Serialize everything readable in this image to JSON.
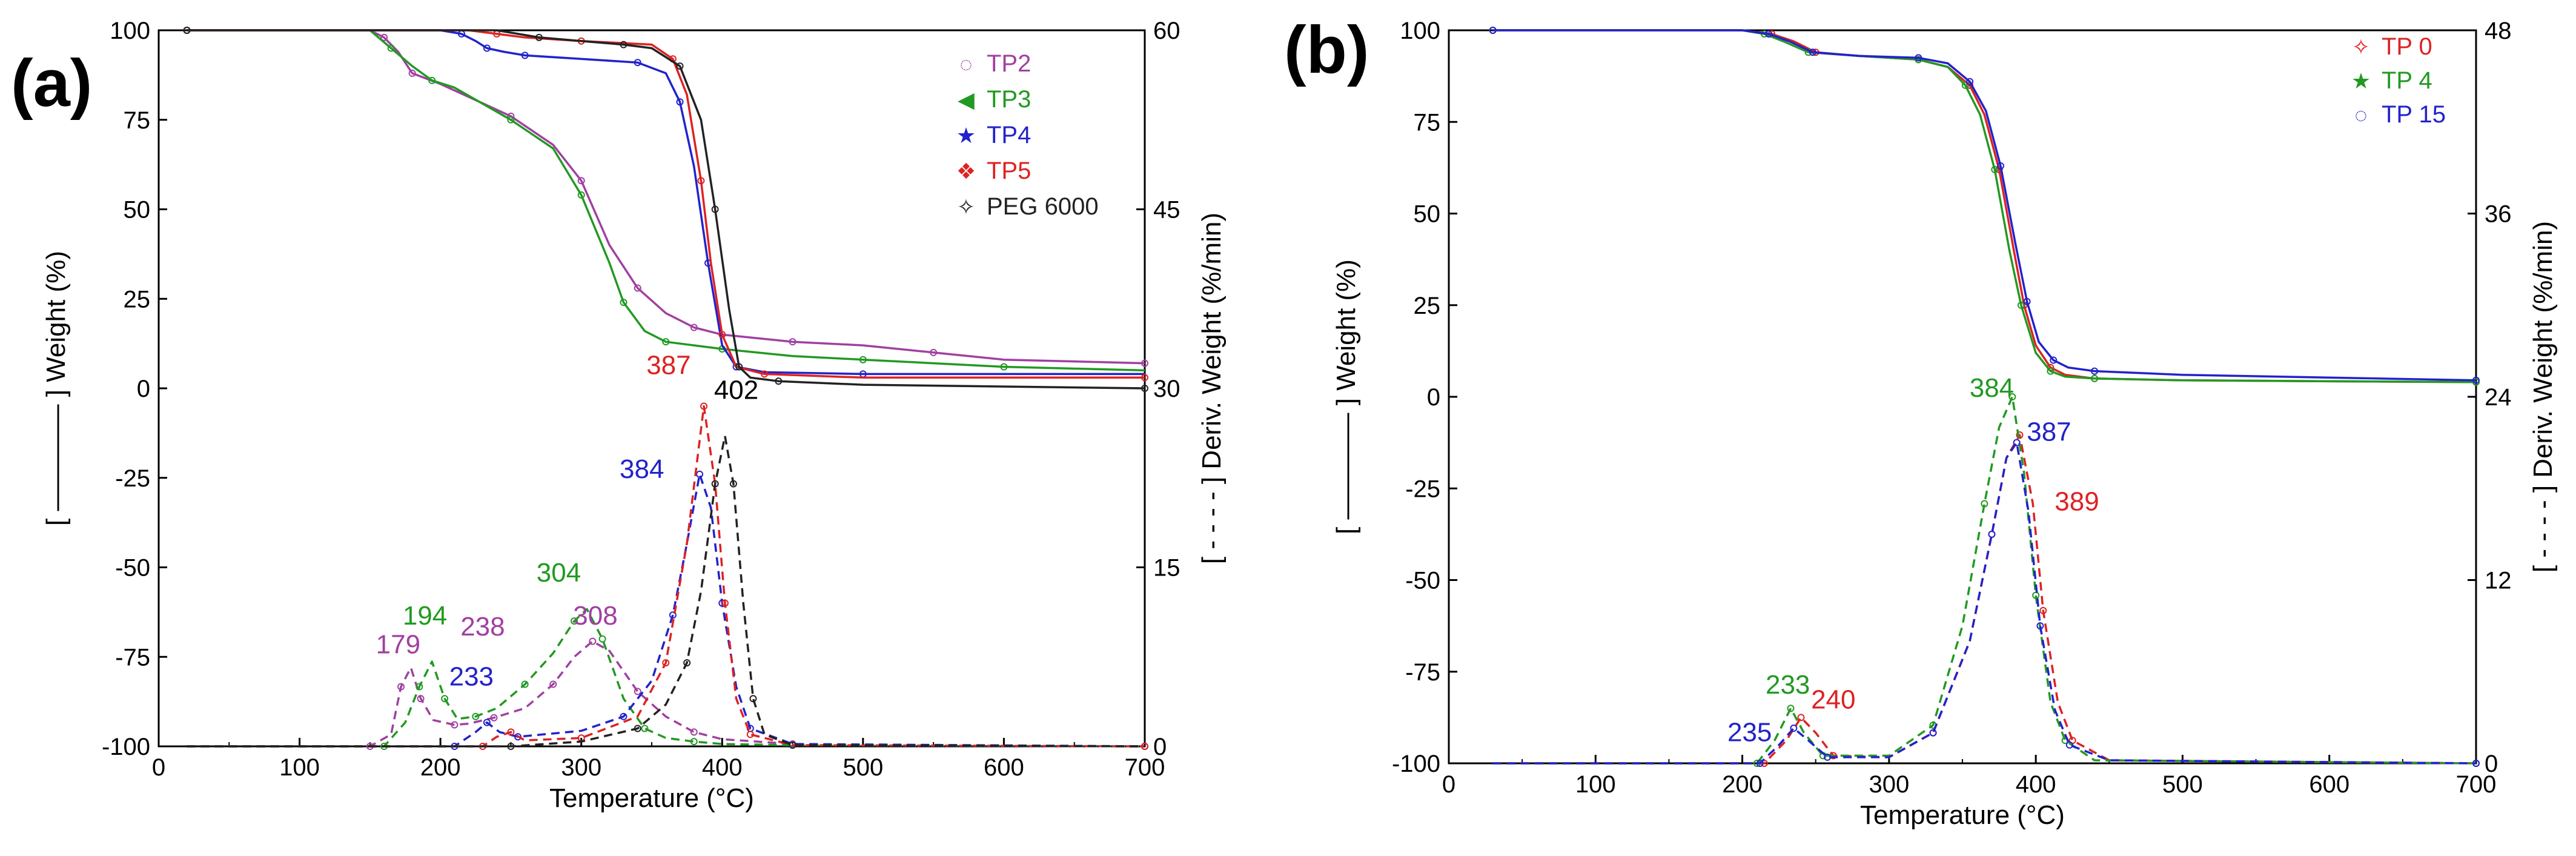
{
  "chart_data": [
    {
      "type": "line",
      "panel_label": "(a)",
      "xlabel": "Temperature (°C)",
      "ylabel_left": "[ ———— ] Weight (%)",
      "ylabel_right": "[ - - - - ] Deriv. Weight (%/min)",
      "xlim": [
        0,
        700
      ],
      "ylim_left": [
        -100,
        100
      ],
      "ylim_right": [
        0,
        60
      ],
      "xticks": [
        0,
        100,
        200,
        300,
        400,
        500,
        600,
        700
      ],
      "yticks_left": [
        -100,
        -75,
        -50,
        -25,
        0,
        25,
        50,
        75,
        100
      ],
      "yticks_right": [
        0,
        15,
        30,
        45,
        60
      ],
      "legend_position": "top-right",
      "series": [
        {
          "name": "TP2",
          "color": "#A040A0",
          "marker": "◌",
          "weight": {
            "x": [
              20,
              150,
              160,
              170,
              180,
              200,
              250,
              280,
              300,
              320,
              340,
              360,
              380,
              400,
              450,
              500,
              550,
              600,
              700
            ],
            "y": [
              100,
              100,
              98,
              94,
              88,
              85,
              76,
              68,
              58,
              40,
              28,
              21,
              17,
              15,
              13,
              12,
              10,
              8,
              7
            ]
          },
          "deriv": {
            "x": [
              20,
              150,
              165,
              172,
              179,
              186,
              195,
              210,
              220,
              238,
              260,
              280,
              295,
              308,
              320,
              340,
              360,
              380,
              400,
              450,
              500,
              700
            ],
            "y": [
              0,
              0,
              1,
              5,
              6.6,
              4,
              2.2,
              1.8,
              1.9,
              2.4,
              3.2,
              5.2,
              7.5,
              8.8,
              8,
              4.6,
              2.5,
              1.2,
              0.6,
              0.2,
              0.1,
              0
            ]
          }
        },
        {
          "name": "TP3",
          "color": "#229922",
          "marker": "◀",
          "weight": {
            "x": [
              20,
              150,
              165,
              180,
              194,
              210,
              250,
              280,
              300,
              320,
              330,
              345,
              360,
              380,
              400,
              450,
              500,
              550,
              600,
              700
            ],
            "y": [
              100,
              100,
              95,
              90,
              86,
              84,
              75,
              67,
              54,
              35,
              24,
              16,
              13,
              12,
              11,
              9,
              8,
              7,
              6,
              5
            ]
          },
          "deriv": {
            "x": [
              20,
              160,
              175,
              185,
              194,
              203,
              212,
              225,
              240,
              260,
              280,
              295,
              304,
              315,
              330,
              345,
              360,
              380,
              400,
              450,
              700
            ],
            "y": [
              0,
              0,
              2,
              5,
              7.1,
              4,
              2.3,
              2.5,
              3.2,
              5.2,
              7.8,
              10.5,
              11.5,
              9,
              4,
              1.5,
              0.7,
              0.4,
              0.2,
              0.1,
              0
            ]
          }
        },
        {
          "name": "TP4",
          "color": "#2222CC",
          "marker": "★",
          "weight": {
            "x": [
              20,
              200,
              215,
              225,
              233,
              245,
              260,
              300,
              340,
              360,
              370,
              380,
              390,
              400,
              410,
              430,
              500,
              700
            ],
            "y": [
              100,
              100,
              99,
              97,
              95,
              94,
              93,
              92,
              91,
              88,
              80,
              62,
              35,
              12,
              6,
              4.5,
              4,
              4
            ]
          },
          "deriv": {
            "x": [
              20,
              210,
              225,
              233,
              242,
              255,
              300,
              330,
              350,
              365,
              375,
              384,
              392,
              400,
              410,
              420,
              450,
              700
            ],
            "y": [
              0,
              0,
              1.2,
              2,
              1.2,
              0.8,
              1.3,
              2.5,
              5.5,
              11,
              17,
              22.8,
              20,
              12,
              5,
              1.5,
              0.2,
              0
            ]
          }
        },
        {
          "name": "TP5",
          "color": "#DD2222",
          "marker": "❖",
          "weight": {
            "x": [
              20,
              220,
              240,
              260,
              300,
              350,
              365,
              375,
              385,
              392,
              400,
              410,
              430,
              500,
              700
            ],
            "y": [
              100,
              100,
              99,
              98,
              97,
              96,
              92,
              82,
              58,
              35,
              15,
              6,
              4,
              3,
              3
            ]
          },
          "deriv": {
            "x": [
              20,
              230,
              240,
              250,
              260,
              300,
              340,
              360,
              375,
              387,
              395,
              402,
              410,
              420,
              450,
              700
            ],
            "y": [
              0,
              0,
              0.8,
              1.2,
              0.5,
              0.7,
              2.5,
              7,
              17,
              28.5,
              22,
              12,
              4,
              1,
              0.1,
              0
            ]
          }
        },
        {
          "name": "PEG 6000",
          "color": "#222222",
          "marker": "✧",
          "weight": {
            "x": [
              20,
              240,
              270,
              300,
              330,
              350,
              370,
              385,
              395,
              405,
              412,
              420,
              440,
              500,
              700
            ],
            "y": [
              100,
              100,
              98,
              97,
              96,
              95,
              90,
              75,
              50,
              22,
              6,
              3,
              2,
              1,
              0
            ]
          },
          "deriv": {
            "x": [
              20,
              250,
              300,
              340,
              360,
              375,
              385,
              395,
              402,
              408,
              415,
              422,
              430,
              450,
              700
            ],
            "y": [
              0,
              0,
              0.4,
              1.5,
              3.5,
              7,
              13,
              22,
              26,
              22,
              12,
              4,
              1,
              0.1,
              0
            ]
          }
        }
      ],
      "annotations": [
        {
          "text": "179",
          "x": 170,
          "y": -74,
          "color": "#A040A0"
        },
        {
          "text": "194",
          "x": 189,
          "y": -66,
          "color": "#229922"
        },
        {
          "text": "238",
          "x": 230,
          "y": -69,
          "color": "#A040A0"
        },
        {
          "text": "233",
          "x": 222,
          "y": -83,
          "color": "#2222CC"
        },
        {
          "text": "304",
          "x": 284,
          "y": -54,
          "color": "#229922"
        },
        {
          "text": "308",
          "x": 310,
          "y": -66,
          "color": "#A040A0"
        },
        {
          "text": "384",
          "x": 343,
          "y": -25,
          "color": "#2222CC"
        },
        {
          "text": "387",
          "x": 362,
          "y": 4,
          "color": "#DD2222"
        },
        {
          "text": "402",
          "x": 410,
          "y": -3,
          "color": "#000000"
        }
      ]
    },
    {
      "type": "line",
      "panel_label": "(b)",
      "xlabel": "Temperature (°C)",
      "ylabel_left": "[ ———— ] Weight (%)",
      "ylabel_right": "[ - - - - ] Deriv. Weight (%/min)",
      "xlim": [
        0,
        700
      ],
      "ylim_left": [
        -100,
        100
      ],
      "ylim_right": [
        0,
        48
      ],
      "xticks": [
        0,
        100,
        200,
        300,
        400,
        500,
        600,
        700
      ],
      "yticks_left": [
        -100,
        -75,
        -50,
        -25,
        0,
        25,
        50,
        75,
        100
      ],
      "yticks_right": [
        0,
        12,
        24,
        36,
        48
      ],
      "legend_position": "top-right",
      "series": [
        {
          "name": "TP 0",
          "color": "#DD2222",
          "marker": "✧",
          "weight": {
            "x": [
              30,
              200,
              220,
              235,
              250,
              280,
              320,
              340,
              355,
              365,
              375,
              385,
              392,
              400,
              410,
              420,
              440,
              500,
              700
            ],
            "y": [
              100,
              100,
              99,
              97,
              94,
              93,
              92,
              90,
              85,
              77,
              62,
              40,
              25,
              14,
              8,
              6,
              5,
              4.5,
              4
            ]
          },
          "deriv": {
            "x": [
              30,
              215,
              230,
              240,
              250,
              262,
              300,
              330,
              355,
              370,
              380,
              389,
              398,
              405,
              415,
              425,
              450,
              700
            ],
            "y": [
              0,
              0,
              1.5,
              3,
              2,
              0.5,
              0.4,
              2,
              8,
              15,
              20,
              21.5,
              17,
              10,
              4,
              1.5,
              0.2,
              0
            ]
          }
        },
        {
          "name": "TP 4",
          "color": "#229922",
          "marker": "★",
          "weight": {
            "x": [
              30,
              200,
              215,
              228,
              245,
              280,
              320,
              340,
              352,
              362,
              372,
              382,
              390,
              400,
              410,
              420,
              440,
              500,
              700
            ],
            "y": [
              100,
              100,
              99,
              97,
              94,
              93,
              92,
              90,
              85,
              77,
              62,
              40,
              25,
              12,
              7,
              5.5,
              5,
              4.5,
              4
            ]
          },
          "deriv": {
            "x": [
              30,
              210,
              222,
              233,
              242,
              255,
              300,
              330,
              350,
              365,
              375,
              384,
              392,
              400,
              410,
              420,
              440,
              700
            ],
            "y": [
              0,
              0,
              1.5,
              3.6,
              2,
              0.5,
              0.5,
              2.5,
              9,
              17,
              22,
              24,
              19,
              11,
              4,
              1.5,
              0.2,
              0
            ]
          }
        },
        {
          "name": "TP 15",
          "color": "#2222CC",
          "marker": "◌",
          "weight": {
            "x": [
              30,
              200,
              218,
              232,
              248,
              280,
              320,
              340,
              355,
              366,
              376,
              386,
              394,
              402,
              412,
              422,
              440,
              500,
              700
            ],
            "y": [
              100,
              100,
              99,
              97,
              94,
              93,
              92.5,
              91,
              86,
              78,
              63,
              42,
              26,
              15,
              10,
              8,
              7,
              6,
              4.5
            ]
          },
          "deriv": {
            "x": [
              30,
              212,
              225,
              235,
              245,
              258,
              300,
              330,
              355,
              370,
              380,
              387,
              395,
              403,
              413,
              423,
              450,
              700
            ],
            "y": [
              0,
              0,
              1.2,
              2.3,
              1.5,
              0.4,
              0.4,
              2,
              8,
              15,
              20,
              21,
              16.5,
              9,
              3.5,
              1.2,
              0.2,
              0
            ]
          }
        }
      ],
      "annotations": [
        {
          "text": "233",
          "x": 231,
          "y": -81,
          "color": "#229922"
        },
        {
          "text": "240",
          "x": 262,
          "y": -85,
          "color": "#DD2222"
        },
        {
          "text": "235",
          "x": 205,
          "y": -94,
          "color": "#2222CC"
        },
        {
          "text": "384",
          "x": 370,
          "y": 0,
          "color": "#229922"
        },
        {
          "text": "387",
          "x": 409,
          "y": -12,
          "color": "#2222CC"
        },
        {
          "text": "389",
          "x": 428,
          "y": -31,
          "color": "#DD2222"
        }
      ]
    }
  ]
}
